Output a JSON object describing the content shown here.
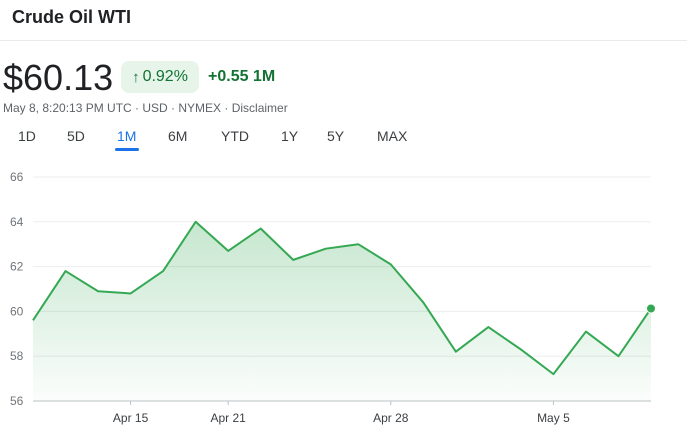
{
  "header": {
    "title": "Crude Oil WTI"
  },
  "quote": {
    "price": "$60.13",
    "change_pct": "0.92%",
    "change_abs": "+0.55 1M",
    "meta": "May 8, 8:20:13 PM UTC · USD · NYMEX · Disclaimer"
  },
  "tabs": [
    "1D",
    "5D",
    "1M",
    "6M",
    "YTD",
    "1Y",
    "5Y",
    "MAX"
  ],
  "active_tab": "1M",
  "colors": {
    "up": "#137333",
    "line": "#34a853",
    "accent": "#1a73e8"
  },
  "icons": {
    "change_arrow": "arrow-up-icon"
  },
  "chart_data": {
    "type": "area",
    "x": [
      "Apr 10",
      "Apr 11",
      "Apr 14",
      "Apr 15",
      "Apr 16",
      "Apr 17",
      "Apr 21",
      "Apr 22",
      "Apr 23",
      "Apr 24",
      "Apr 25",
      "Apr 28",
      "Apr 29",
      "Apr 30",
      "May 1",
      "May 2",
      "May 5",
      "May 6",
      "May 7",
      "May 8"
    ],
    "x_tick_labels": [
      "Apr 15",
      "Apr 21",
      "Apr 28",
      "May 5"
    ],
    "values": [
      59.6,
      61.8,
      60.9,
      60.8,
      61.8,
      64.0,
      62.7,
      63.7,
      62.3,
      62.8,
      63.0,
      62.1,
      60.4,
      58.2,
      59.3,
      58.3,
      57.2,
      59.1,
      58.0,
      60.13
    ],
    "y_ticks": [
      56,
      58,
      60,
      62,
      64,
      66
    ],
    "ylim": [
      56,
      66
    ],
    "grid": true,
    "title": "",
    "xlabel": "",
    "ylabel": ""
  }
}
